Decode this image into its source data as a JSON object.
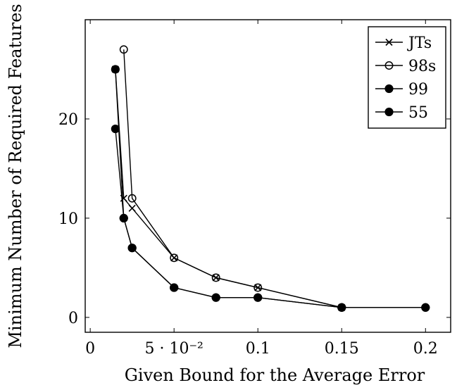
{
  "chart_data": {
    "type": "line",
    "title": "",
    "xlabel": "Given Bound for the Average Error",
    "ylabel": "Minimum Number of Required Features",
    "xlim": [
      -0.003,
      0.215
    ],
    "ylim": [
      -1.5,
      30
    ],
    "x_ticks": [
      {
        "value": 0,
        "label": "0"
      },
      {
        "value": 0.05,
        "label": "5 · 10⁻²"
      },
      {
        "value": 0.1,
        "label": "0.1"
      },
      {
        "value": 0.15,
        "label": "0.15"
      },
      {
        "value": 0.2,
        "label": "0.2"
      }
    ],
    "y_ticks": [
      {
        "value": 0,
        "label": "0"
      },
      {
        "value": 10,
        "label": "10"
      },
      {
        "value": 20,
        "label": "20"
      }
    ],
    "grid": false,
    "legend_position": "top-right",
    "series": [
      {
        "name": "JTs",
        "marker": "x",
        "points": [
          [
            0.015,
            25
          ],
          [
            0.02,
            12
          ],
          [
            0.025,
            11
          ],
          [
            0.05,
            6
          ],
          [
            0.075,
            4
          ],
          [
            0.1,
            3
          ],
          [
            0.15,
            1
          ]
        ]
      },
      {
        "name": "98s",
        "marker": "circle-open",
        "points": [
          [
            0.02,
            27
          ],
          [
            0.025,
            12
          ],
          [
            0.05,
            6
          ],
          [
            0.075,
            4
          ],
          [
            0.1,
            3
          ],
          [
            0.15,
            1
          ]
        ]
      },
      {
        "name": "99",
        "marker": "circle-filled",
        "points": [
          [
            0.015,
            25
          ],
          [
            0.02,
            10
          ],
          [
            0.025,
            7
          ],
          [
            0.05,
            3
          ],
          [
            0.075,
            2
          ],
          [
            0.1,
            2
          ],
          [
            0.15,
            1
          ],
          [
            0.2,
            1
          ]
        ]
      },
      {
        "name": "55",
        "marker": "circle-filled",
        "points": [
          [
            0.015,
            19
          ],
          [
            0.02,
            10
          ],
          [
            0.025,
            7
          ],
          [
            0.05,
            3
          ],
          [
            0.075,
            2
          ],
          [
            0.1,
            2
          ],
          [
            0.15,
            1
          ],
          [
            0.2,
            1
          ]
        ]
      }
    ],
    "colors": {
      "line": "#000000",
      "background": "#ffffff"
    }
  }
}
